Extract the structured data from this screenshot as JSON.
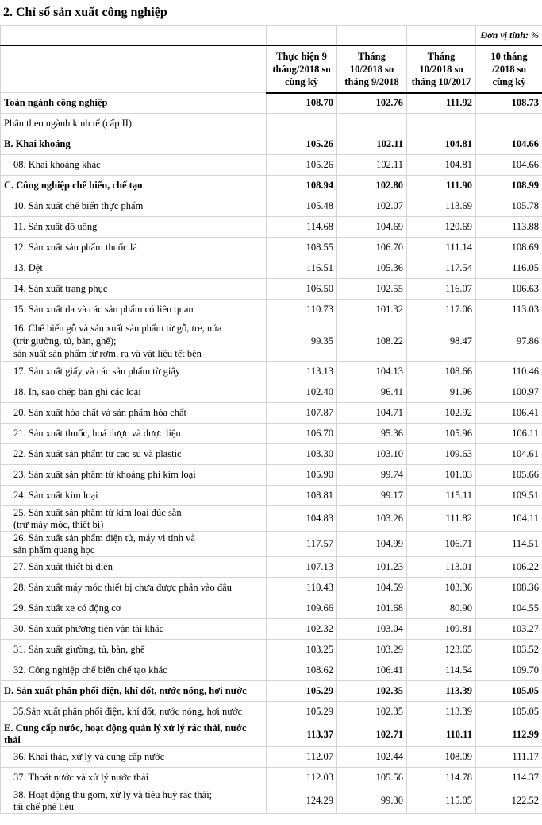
{
  "title": "2. Chỉ số sản xuất công nghiệp",
  "unit": "Đơn vị tính: %",
  "columns": [
    "Thực hiện 9\ntháng/2018 so\ncùng kỳ",
    "Tháng\n10/2018 so\ntháng 9/2018",
    "Tháng\n10/2018 so\ntháng 10/2017",
    "10 tháng\n/2018 so\ncùng kỳ"
  ],
  "rows": [
    {
      "label": "Toàn ngành công nghiệp",
      "values": [
        "108.70",
        "102.76",
        "111.92",
        "108.73"
      ],
      "bold": true
    },
    {
      "label": "Phân theo ngành kinh tế (cấp II)",
      "values": [
        "",
        "",
        "",
        ""
      ]
    },
    {
      "label": "B. Khai khoáng",
      "values": [
        "105.26",
        "102.11",
        "104.81",
        "104.66"
      ],
      "bold": true
    },
    {
      "label": "08. Khai khoáng khác",
      "values": [
        "105.26",
        "102.11",
        "104.81",
        "104.66"
      ],
      "indent": true
    },
    {
      "label": "C. Công nghiệp chế biến, chế tạo",
      "values": [
        "108.94",
        "102.80",
        "111.90",
        "108.99"
      ],
      "bold": true
    },
    {
      "label": "10. Sản xuất chế biến thực phẩm",
      "values": [
        "105.48",
        "102.07",
        "113.69",
        "105.78"
      ],
      "indent": true
    },
    {
      "label": "11. Sản xuất đồ uống",
      "values": [
        "114.68",
        "104.69",
        "120.69",
        "113.88"
      ],
      "indent": true
    },
    {
      "label": "12. Sản xuất sản phẩm thuốc lá",
      "values": [
        "108.55",
        "106.70",
        "111.14",
        "108.69"
      ],
      "indent": true
    },
    {
      "label": "13. Dệt",
      "values": [
        "116.51",
        "105.36",
        "117.54",
        "116.05"
      ],
      "indent": true
    },
    {
      "label": "14. Sản xuất trang phục",
      "values": [
        "106.50",
        "102.55",
        "116.07",
        "106.63"
      ],
      "indent": true
    },
    {
      "label": "15. Sản xuất da và các sản phẩm có liên quan",
      "values": [
        "110.73",
        "101.32",
        "117.06",
        "113.03"
      ],
      "indent": true
    },
    {
      "label": "16. Chế biến gỗ và sản xuất sản phẩm từ gỗ, tre, nứa\n(trừ giường, tủ, bàn, ghế);\nsản xuất sản phẩm từ rơm, rạ và vật liệu tết bện",
      "values": [
        "99.35",
        "108.22",
        "98.47",
        "97.86"
      ],
      "indent": true,
      "lines": 3
    },
    {
      "label": "17. Sản xuất giấy và các sản phẩm từ giấy",
      "values": [
        "113.13",
        "104.13",
        "108.66",
        "110.46"
      ],
      "indent": true
    },
    {
      "label": "18. In, sao chép bản ghi các loại",
      "values": [
        "102.40",
        "96.41",
        "91.96",
        "100.97"
      ],
      "indent": true
    },
    {
      "label": "20. Sản xuất hóa chất và sản phẩm hóa chất",
      "values": [
        "107.87",
        "104.71",
        "102.92",
        "106.41"
      ],
      "indent": true
    },
    {
      "label": "21. Sản xuất thuốc, hoá dược và dược liệu",
      "values": [
        "106.70",
        "95.36",
        "105.96",
        "106.11"
      ],
      "indent": true
    },
    {
      "label": "22. Sản xuất sản phẩm từ cao su và plastic",
      "values": [
        "103.30",
        "103.10",
        "109.63",
        "104.61"
      ],
      "indent": true
    },
    {
      "label": "23. Sản xuất sản phẩm từ khoáng phi kim loại",
      "values": [
        "105.90",
        "99.74",
        "101.03",
        "105.66"
      ],
      "indent": true
    },
    {
      "label": "24. Sản xuất kim loại",
      "values": [
        "108.81",
        "99.17",
        "115.11",
        "109.51"
      ],
      "indent": true
    },
    {
      "label": "25. Sản xuất sản phẩm từ kim loại đúc sẵn\n(trừ máy móc, thiết bị)",
      "values": [
        "104.83",
        "103.26",
        "111.82",
        "104.11"
      ],
      "indent": true,
      "lines": 2
    },
    {
      "label": "26. Sản xuất sản phẩm điện tử, máy vi tính và\nsản phẩm quang học",
      "values": [
        "117.57",
        "104.99",
        "106.71",
        "114.51"
      ],
      "indent": true,
      "lines": 2
    },
    {
      "label": "27. Sản xuất thiết bị điện",
      "values": [
        "107.13",
        "101.23",
        "113.01",
        "106.22"
      ],
      "indent": true
    },
    {
      "label": "28. Sản xuất máy móc thiết bị chưa được phân vào đâu",
      "values": [
        "110.43",
        "104.59",
        "103.36",
        "108.36"
      ],
      "indent": true
    },
    {
      "label": "29. Sản xuất xe có động cơ",
      "values": [
        "109.66",
        "101.68",
        "80.90",
        "104.55"
      ],
      "indent": true
    },
    {
      "label": "30. Sản xuất phương tiện vận tải khác",
      "values": [
        "102.32",
        "103.04",
        "109.81",
        "103.27"
      ],
      "indent": true
    },
    {
      "label": "31. Sản xuất giường, tủ, bàn, ghế",
      "values": [
        "103.25",
        "103.29",
        "123.65",
        "103.52"
      ],
      "indent": true
    },
    {
      "label": "32. Công nghiệp chế biến chế tạo khác",
      "values": [
        "108.62",
        "106.41",
        "114.54",
        "109.70"
      ],
      "indent": true
    },
    {
      "label": "D. Sản xuất phân phối điện, khí đốt, nước nóng, hơi nước",
      "values": [
        "105.29",
        "102.35",
        "113.39",
        "105.05"
      ],
      "bold": true
    },
    {
      "label": "35.Sản xuất phân phối điện, khí đốt, nước nóng, hơi nước",
      "values": [
        "105.29",
        "102.35",
        "113.39",
        "105.05"
      ],
      "indent": true
    },
    {
      "label": "E. Cung cấp nước, hoạt động quản lý xử lý rác thải, nước thải",
      "values": [
        "113.37",
        "102.71",
        "110.11",
        "112.99"
      ],
      "bold": true
    },
    {
      "label": "36. Khai thác, xử lý và cung cấp nước",
      "values": [
        "112.07",
        "102.44",
        "108.09",
        "111.17"
      ],
      "indent": true
    },
    {
      "label": "37. Thoát nước và xử lý nước thải",
      "values": [
        "112.03",
        "105.56",
        "114.78",
        "114.37"
      ],
      "indent": true
    },
    {
      "label": "38. Hoạt động thu gom, xử lý và tiêu huỷ rác thải;\ntái chế phế liệu",
      "values": [
        "124.29",
        "99.30",
        "115.05",
        "122.52"
      ],
      "indent": true,
      "lines": 2
    }
  ]
}
